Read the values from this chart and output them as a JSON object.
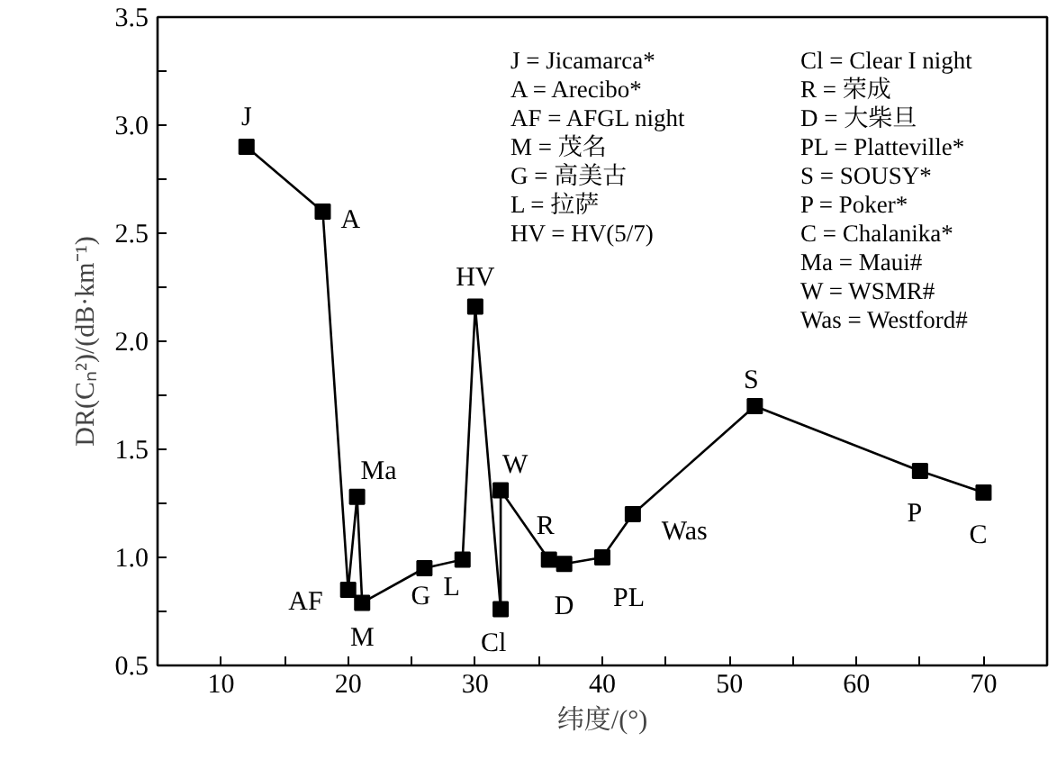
{
  "chart_data": {
    "type": "line",
    "xlabel": "纬度/(°)",
    "ylabel": "DR(Cₙ²)/(dB·km⁻¹)",
    "x": [
      12,
      18,
      20,
      20.7,
      21.1,
      26,
      29,
      30,
      32,
      32,
      35.8,
      37,
      40,
      42.4,
      52,
      65,
      70
    ],
    "series": [
      {
        "color": "#000000",
        "values": [
          2.9,
          2.6,
          0.85,
          1.28,
          0.79,
          0.95,
          0.99,
          2.16,
          0.76,
          1.31,
          0.99,
          0.97,
          1.0,
          1.2,
          1.7,
          1.4,
          1.3
        ]
      }
    ],
    "marker": "square",
    "line_style": "solid",
    "xlim": [
      5,
      75
    ],
    "ylim": [
      0.5,
      3.5
    ],
    "xticks": [
      10,
      {
        "value": 15,
        "label": null
      },
      20,
      {
        "value": 25,
        "label": null
      },
      30,
      {
        "value": 35,
        "label": null
      },
      40,
      {
        "value": 45,
        "label": null
      },
      50,
      {
        "value": 55,
        "label": null
      },
      60,
      {
        "value": 65,
        "label": null
      },
      70
    ],
    "yticks": [
      {
        "value": 0.5,
        "label": "0.5"
      },
      {
        "value": 0.75,
        "label": null
      },
      {
        "value": 1.0,
        "label": "1.0"
      },
      {
        "value": 1.25,
        "label": null
      },
      {
        "value": 1.5,
        "label": "1.5"
      },
      {
        "value": 1.75,
        "label": null
      },
      {
        "value": 2.0,
        "label": "2.0"
      },
      {
        "value": 2.25,
        "label": null
      },
      {
        "value": 2.5,
        "label": "2.5"
      },
      {
        "value": 2.75,
        "label": null
      },
      {
        "value": 3.0,
        "label": "3.0"
      },
      {
        "value": 3.25,
        "label": null
      },
      {
        "value": 3.5,
        "label": "3.5"
      }
    ],
    "annotations": [
      {
        "text": "J",
        "x": 12,
        "y": 2.9
      },
      {
        "text": "A",
        "x": 18,
        "y": 2.6
      },
      {
        "text": "AF",
        "x": 20,
        "y": 0.85
      },
      {
        "text": "Ma",
        "x": 20.7,
        "y": 1.28
      },
      {
        "text": "M",
        "x": 21.1,
        "y": 0.79
      },
      {
        "text": "G",
        "x": 26,
        "y": 0.95
      },
      {
        "text": "L",
        "x": 29,
        "y": 0.99
      },
      {
        "text": "HV",
        "x": 30,
        "y": 2.16
      },
      {
        "text": "Cl",
        "x": 32,
        "y": 0.76
      },
      {
        "text": "W",
        "x": 32,
        "y": 1.31
      },
      {
        "text": "R",
        "x": 35.8,
        "y": 0.99
      },
      {
        "text": "D",
        "x": 37,
        "y": 0.97
      },
      {
        "text": "PL",
        "x": 40,
        "y": 1.0
      },
      {
        "text": "Was",
        "x": 42.4,
        "y": 1.2
      },
      {
        "text": "S",
        "x": 52,
        "y": 1.7
      },
      {
        "text": "P",
        "x": 65,
        "y": 1.4
      },
      {
        "text": "C",
        "x": 70,
        "y": 1.3
      },
      "J = Jicamarca*",
      "A = Arecibo*",
      "AF = AFGL night",
      "M = 茂名",
      "G = 高美古",
      "L = 拉萨",
      "HV = HV(5/7)",
      "Cl = Clear I night",
      "R = 荣成",
      "D = 大柴旦",
      "PL = Platteville*",
      "S = SOUSY*",
      "P = Poker*",
      "C = Chalanika*",
      "Ma = Maui#",
      "W = WSMR#",
      "Was = Westford#"
    ]
  }
}
